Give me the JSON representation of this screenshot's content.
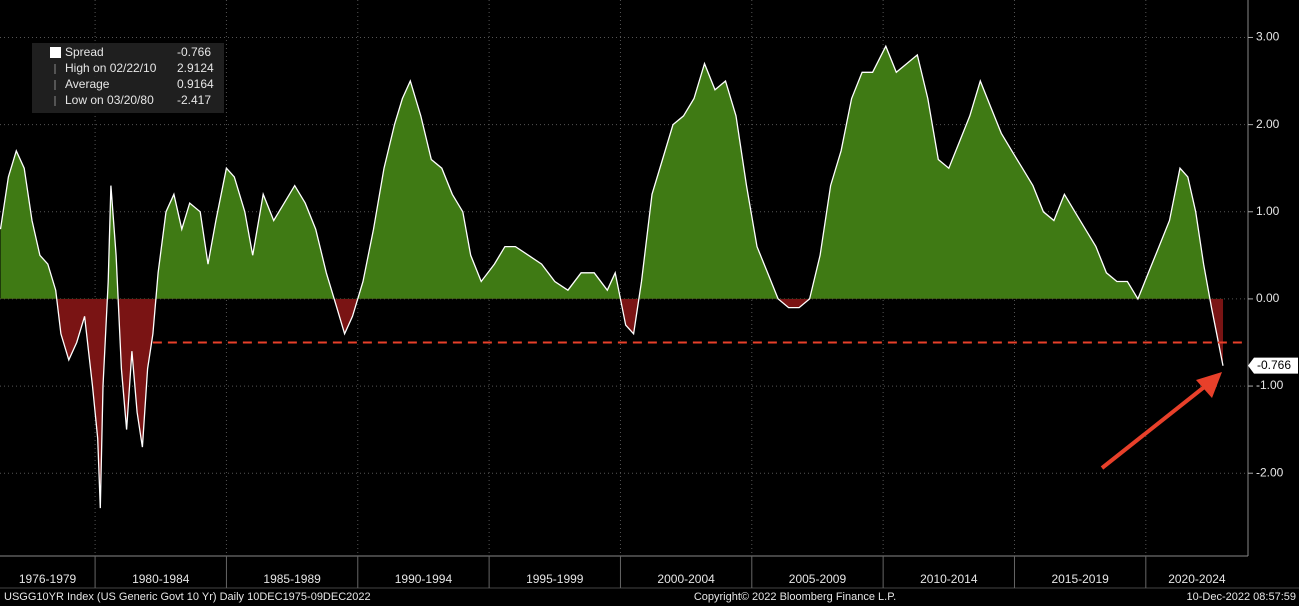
{
  "chart_data": {
    "type": "area",
    "legend_stats": [
      {
        "label": "Spread",
        "value": -0.766
      },
      {
        "label": "High on 02/22/10",
        "value": 2.9124
      },
      {
        "label": "Average",
        "value": 0.9164
      },
      {
        "label": "Low on 03/20/80",
        "value": -2.417
      }
    ],
    "x": [
      1976.4,
      1976.7,
      1977.0,
      1977.3,
      1977.6,
      1977.9,
      1978.2,
      1978.5,
      1978.7,
      1979.0,
      1979.3,
      1979.6,
      1979.9,
      1980.1,
      1980.2,
      1980.3,
      1980.5,
      1980.6,
      1980.8,
      1981.0,
      1981.2,
      1981.4,
      1981.6,
      1981.8,
      1982.0,
      1982.2,
      1982.4,
      1982.7,
      1983.0,
      1983.3,
      1983.6,
      1984.0,
      1984.3,
      1984.6,
      1985.0,
      1985.3,
      1985.7,
      1986.0,
      1986.4,
      1986.8,
      1987.2,
      1987.6,
      1988.0,
      1988.4,
      1988.8,
      1989.2,
      1989.5,
      1989.8,
      1990.2,
      1990.6,
      1991.0,
      1991.4,
      1991.7,
      1992.0,
      1992.4,
      1992.8,
      1993.2,
      1993.6,
      1994.0,
      1994.3,
      1994.7,
      1995.2,
      1995.6,
      1996.0,
      1996.5,
      1997.0,
      1997.5,
      1998.0,
      1998.5,
      1999.0,
      1999.5,
      1999.8,
      2000.2,
      2000.5,
      2000.8,
      2001.2,
      2001.6,
      2002.0,
      2002.4,
      2002.8,
      2003.2,
      2003.6,
      2004.0,
      2004.4,
      2004.8,
      2005.2,
      2005.6,
      2006.0,
      2006.4,
      2006.8,
      2007.2,
      2007.6,
      2008.0,
      2008.4,
      2008.8,
      2009.2,
      2009.6,
      2010.1,
      2010.5,
      2010.9,
      2011.3,
      2011.7,
      2012.1,
      2012.5,
      2012.9,
      2013.3,
      2013.7,
      2014.1,
      2014.5,
      2014.9,
      2015.3,
      2015.7,
      2016.1,
      2016.5,
      2016.9,
      2017.3,
      2017.7,
      2018.1,
      2018.5,
      2018.9,
      2019.3,
      2019.7,
      2020.1,
      2020.5,
      2020.9,
      2021.3,
      2021.6,
      2021.9,
      2022.2,
      2022.5,
      2022.7,
      2022.94
    ],
    "series": [
      {
        "name": "Spread",
        "color": "#3f7a14",
        "negative_color": "#7a1414",
        "line_color": "#ffffff",
        "values": [
          0.8,
          1.4,
          1.7,
          1.5,
          0.9,
          0.5,
          0.4,
          0.1,
          -0.4,
          -0.7,
          -0.5,
          -0.2,
          -1.0,
          -1.6,
          -2.4,
          -1.0,
          0.2,
          1.3,
          0.5,
          -0.8,
          -1.5,
          -0.6,
          -1.3,
          -1.7,
          -0.8,
          -0.4,
          0.3,
          1.0,
          1.2,
          0.8,
          1.1,
          1.0,
          0.4,
          0.9,
          1.5,
          1.4,
          1.0,
          0.5,
          1.2,
          0.9,
          1.1,
          1.3,
          1.1,
          0.8,
          0.3,
          -0.1,
          -0.4,
          -0.2,
          0.2,
          0.8,
          1.5,
          2.0,
          2.3,
          2.5,
          2.1,
          1.6,
          1.5,
          1.2,
          1.0,
          0.5,
          0.2,
          0.4,
          0.6,
          0.6,
          0.5,
          0.4,
          0.2,
          0.1,
          0.3,
          0.3,
          0.1,
          0.3,
          -0.3,
          -0.4,
          0.2,
          1.2,
          1.6,
          2.0,
          2.1,
          2.3,
          2.7,
          2.4,
          2.5,
          2.1,
          1.3,
          0.6,
          0.3,
          0.0,
          -0.1,
          -0.1,
          0.0,
          0.5,
          1.3,
          1.7,
          2.3,
          2.6,
          2.6,
          2.9,
          2.6,
          2.7,
          2.8,
          2.3,
          1.6,
          1.5,
          1.8,
          2.1,
          2.5,
          2.2,
          1.9,
          1.7,
          1.5,
          1.3,
          1.0,
          0.9,
          1.2,
          1.0,
          0.8,
          0.6,
          0.3,
          0.2,
          0.2,
          0.0,
          0.3,
          0.6,
          0.9,
          1.5,
          1.4,
          1.0,
          0.4,
          -0.1,
          -0.4,
          -0.766
        ]
      }
    ],
    "last_value": -0.766,
    "reference_line": {
      "value": -0.5,
      "x_start": 1982.2,
      "color": "#e8402a"
    },
    "xlim": [
      1976.38,
      2023.89
    ],
    "xticks": [
      1980,
      1985,
      1990,
      1995,
      2000,
      2005,
      2010,
      2015,
      2020
    ],
    "period_labels": [
      "1976-1979",
      "1980-1984",
      "1985-1989",
      "1990-1994",
      "1995-1999",
      "2000-2004",
      "2005-2009",
      "2010-2014",
      "2015-2019",
      "2020-2024"
    ],
    "ylim": [
      -2.95,
      3.43
    ],
    "yticks": [
      {
        "value": 3,
        "label": "3.00"
      },
      {
        "value": 2,
        "label": "2.00"
      },
      {
        "value": 1,
        "label": "1.00"
      },
      {
        "value": 0,
        "label": "0.00"
      },
      {
        "value": -1,
        "label": "-1.00"
      },
      {
        "value": -2,
        "label": "-2.00"
      }
    ],
    "grid": true,
    "footer": {
      "left": "USGG10YR Index (US Generic Govt 10 Yr)  Daily 10DEC1975-09DEC2022",
      "center": "Copyright© 2022 Bloomberg Finance L.P.",
      "right": "10-Dec-2022 08:57:59"
    }
  }
}
